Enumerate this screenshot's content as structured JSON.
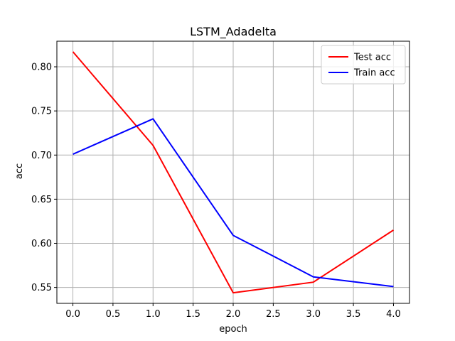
{
  "chart_data": {
    "type": "line",
    "title": "LSTM_Adadelta",
    "xlabel": "epoch",
    "ylabel": "acc",
    "x": [
      0,
      1,
      2,
      3,
      4
    ],
    "xlim": [
      -0.2,
      4.2
    ],
    "ylim": [
      0.532,
      0.829
    ],
    "xticks": [
      0.0,
      0.5,
      1.0,
      1.5,
      2.0,
      2.5,
      3.0,
      3.5,
      4.0
    ],
    "xtick_labels": [
      "0.0",
      "0.5",
      "1.0",
      "1.5",
      "2.0",
      "2.5",
      "3.0",
      "3.5",
      "4.0"
    ],
    "yticks": [
      0.55,
      0.6,
      0.65,
      0.7,
      0.75,
      0.8
    ],
    "ytick_labels": [
      "0.55",
      "0.60",
      "0.65",
      "0.70",
      "0.75",
      "0.80"
    ],
    "grid": true,
    "legend_position": "top-right",
    "series": [
      {
        "name": "Test acc",
        "color": "#ff0000",
        "values": [
          0.817,
          0.711,
          0.544,
          0.556,
          0.615
        ]
      },
      {
        "name": "Train acc",
        "color": "#0000ff",
        "values": [
          0.701,
          0.741,
          0.609,
          0.562,
          0.551
        ]
      }
    ]
  }
}
